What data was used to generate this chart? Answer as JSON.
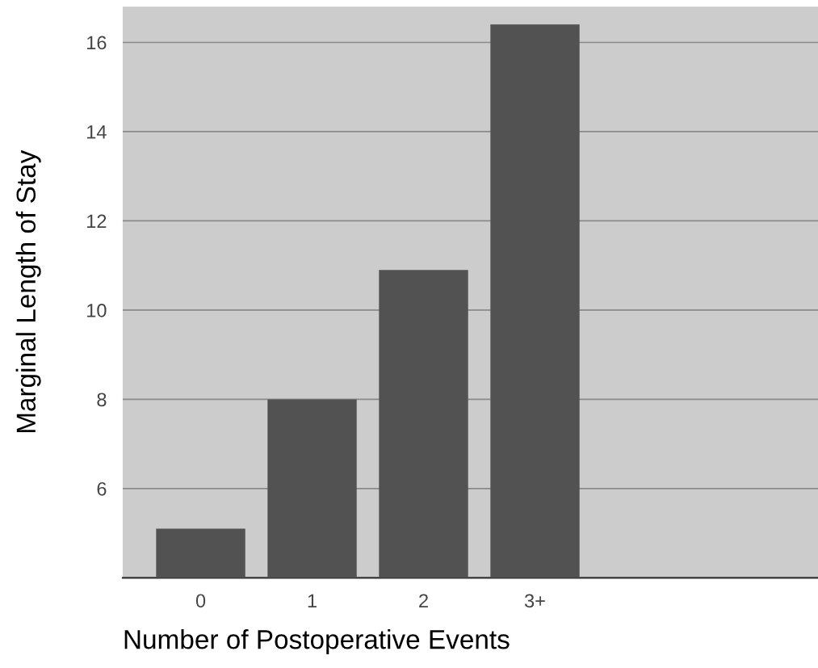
{
  "chart_data": {
    "type": "bar",
    "xlabel": "Number of Postoperative Events",
    "ylabel": "Marginal Length of Stay",
    "categories": [
      "0",
      "1",
      "2",
      "3+"
    ],
    "values": [
      5.1,
      8.0,
      10.9,
      16.4
    ],
    "color": "#515251",
    "ylim": [
      4,
      16.8
    ],
    "yticks": [
      6,
      8,
      10,
      12,
      14,
      16
    ],
    "grid": "y",
    "legend": false
  }
}
